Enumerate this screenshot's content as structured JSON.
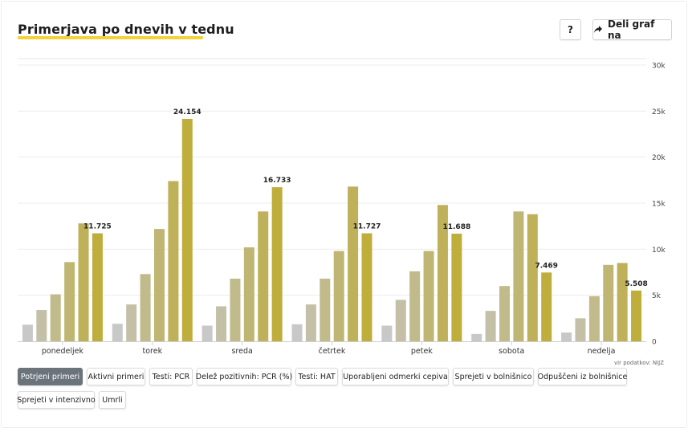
{
  "header": {
    "title": "Primerjava po dnevih v tednu",
    "help_label": "?",
    "share_label": "Deli graf na"
  },
  "source_label": "vir podatkov: NIJZ",
  "filters": [
    {
      "label": "Potrjeni primeri",
      "active": true
    },
    {
      "label": "Aktivni primeri",
      "active": false
    },
    {
      "label": "Testi: PCR",
      "active": false
    },
    {
      "label": "Delež pozitivnih: PCR (%)",
      "active": false
    },
    {
      "label": "Testi: HAT",
      "active": false
    },
    {
      "label": "Uporabljeni odmerki cepiva",
      "active": false
    },
    {
      "label": "Sprejeti v bolnišnico",
      "active": false
    },
    {
      "label": "Odpuščeni iz bolnišnice",
      "active": false
    },
    {
      "label": "Sprejeti v intenzivno",
      "active": false
    },
    {
      "label": "Umrli",
      "active": false
    }
  ],
  "colors": {
    "bars": [
      "#c8c8c8",
      "#c4c0a8",
      "#c1bb8c",
      "#c0b673",
      "#bfb15a",
      "#bfad3c",
      "#c0aa28"
    ]
  },
  "chart_data": {
    "type": "bar",
    "categories": [
      "ponedeljek",
      "torek",
      "sreda",
      "četrtek",
      "petek",
      "sobota",
      "nedelja"
    ],
    "series": [
      {
        "values": [
          1800,
          1900,
          1700,
          1850,
          1700,
          800,
          950
        ]
      },
      {
        "values": [
          3400,
          4000,
          3800,
          4000,
          4500,
          3300,
          2500
        ]
      },
      {
        "values": [
          5100,
          7300,
          6800,
          6800,
          7600,
          6000,
          4900
        ]
      },
      {
        "values": [
          8600,
          12200,
          10200,
          9800,
          9800,
          14100,
          8300
        ]
      },
      {
        "values": [
          12800,
          17400,
          14100,
          16800,
          14800,
          13800,
          8500
        ]
      },
      {
        "values": [
          11725,
          24154,
          16733,
          11727,
          11688,
          7469,
          5508
        ]
      }
    ],
    "data_labels": [
      "11.725",
      "24.154",
      "16.733",
      "11.727",
      "11.688",
      "7.469",
      "5.508"
    ],
    "ylim": [
      0,
      30000
    ],
    "yticks": [
      0,
      5000,
      10000,
      15000,
      20000,
      25000,
      30000
    ],
    "ytick_labels": [
      "0",
      "5k",
      "10k",
      "15k",
      "20k",
      "25k",
      "30k"
    ],
    "grid": true
  }
}
